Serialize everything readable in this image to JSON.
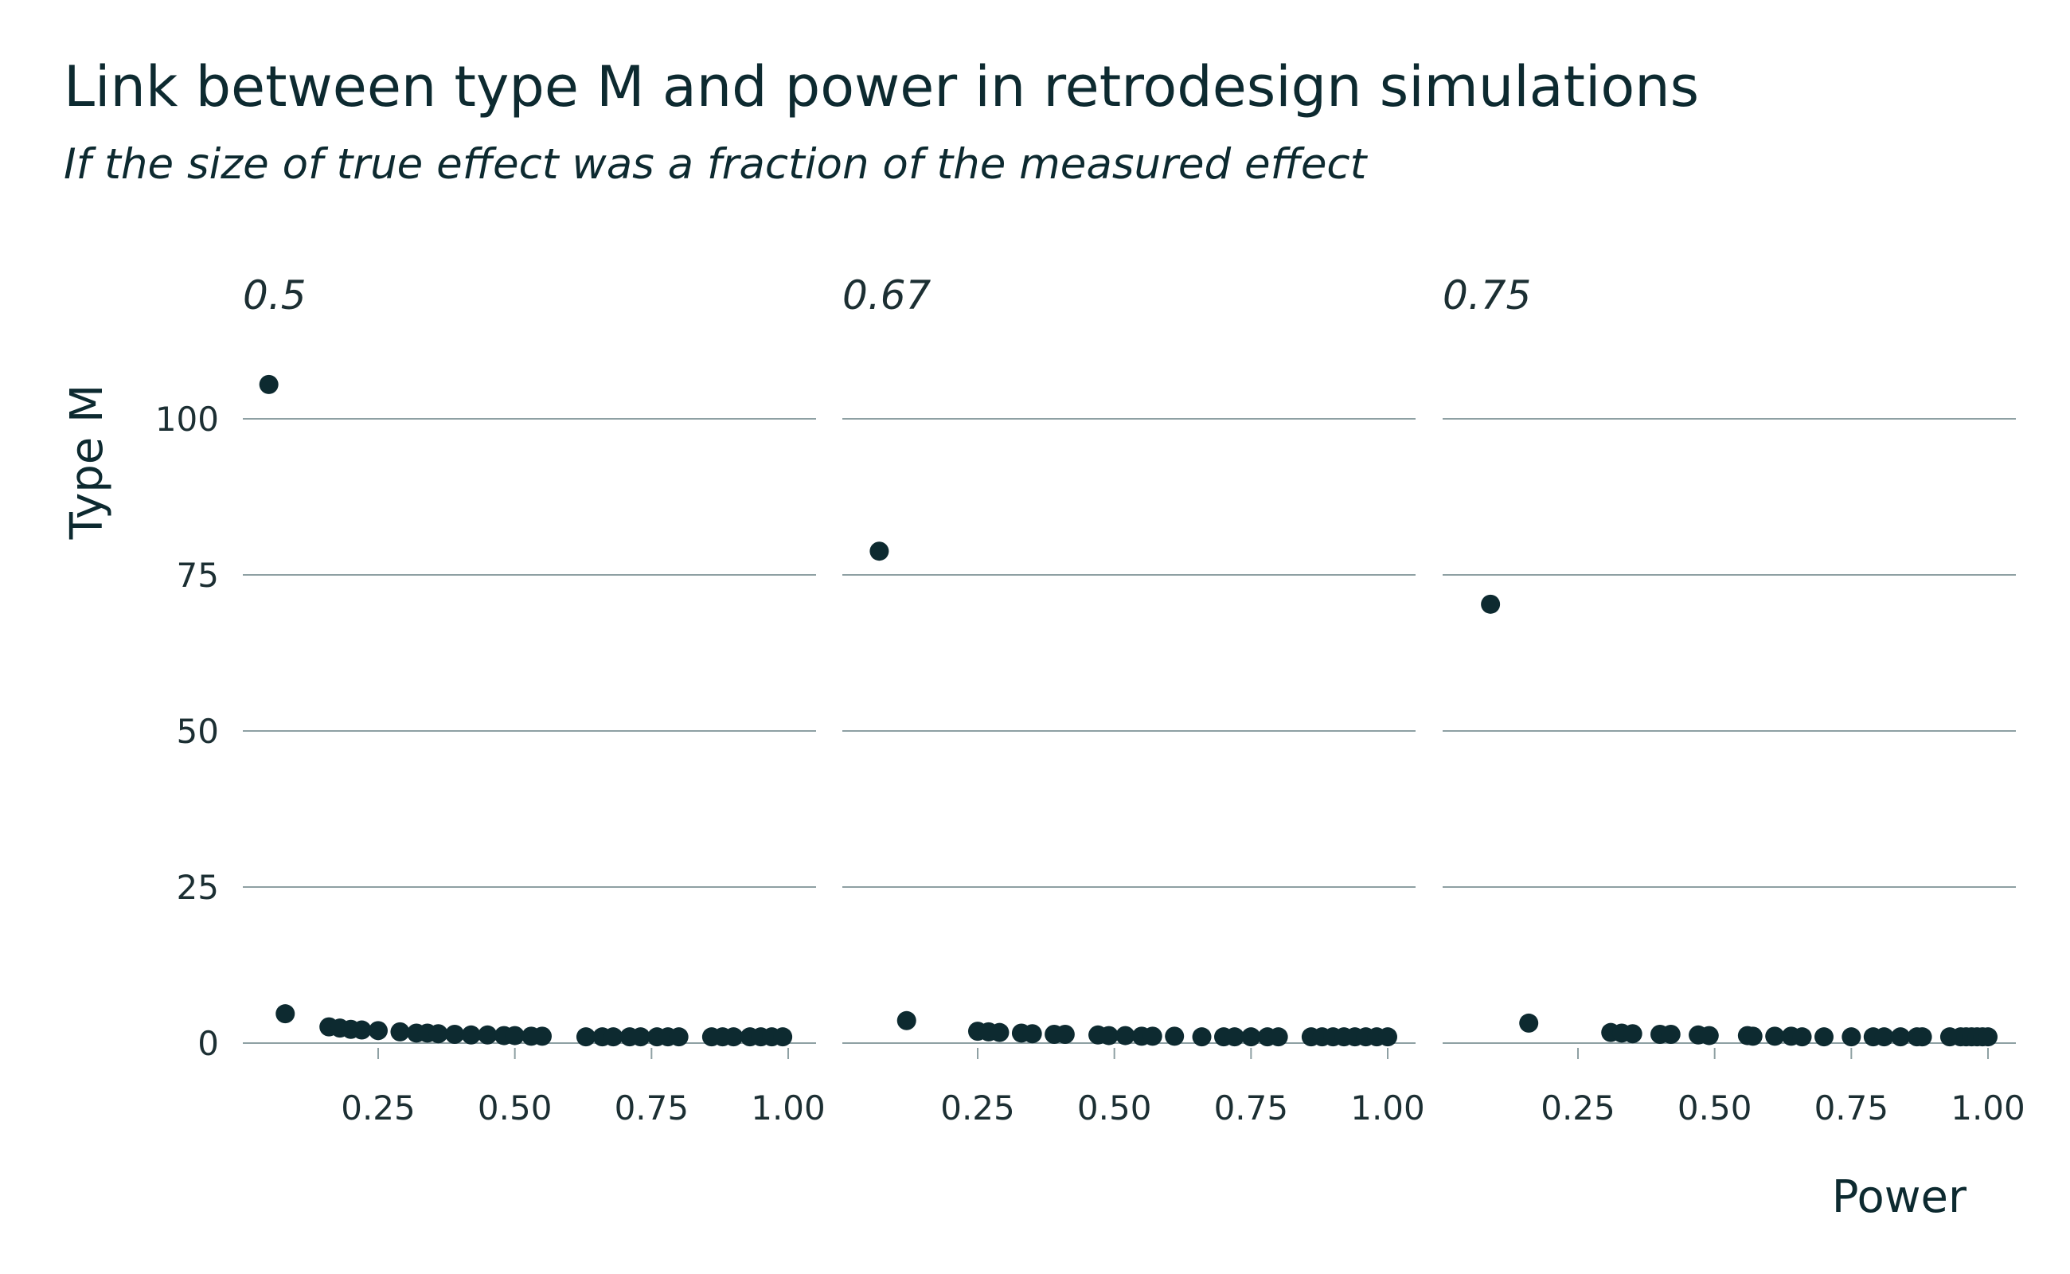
{
  "title": "Link between type M and power in retrodesign simulations",
  "subtitle": "If the size of true effect was a fraction of the measured effect",
  "colors": {
    "background": "#ffffff",
    "text": "#0d2a30",
    "gridline": "#8ea0a3",
    "point": "#0d2a30"
  },
  "chart_data": {
    "type": "scatter",
    "facet_layout": "1 row x 3 columns, shared y axis",
    "xlabel": "Power",
    "ylabel": "Type M",
    "xlim": [
      0.05,
      1.03
    ],
    "ylim": [
      -3,
      110
    ],
    "x_ticks": [
      "0.25",
      "0.50",
      "0.75",
      "1.00"
    ],
    "x_tick_values": [
      0.25,
      0.5,
      0.75,
      1.0
    ],
    "y_ticks": [
      "0",
      "25",
      "50",
      "75",
      "100"
    ],
    "y_tick_values": [
      0,
      25,
      50,
      75,
      100
    ],
    "grid": "horizontal major gridlines only",
    "panels": [
      {
        "label": "0.5",
        "x": [
          0.05,
          0.08,
          0.16,
          0.18,
          0.2,
          0.22,
          0.25,
          0.29,
          0.32,
          0.34,
          0.36,
          0.39,
          0.42,
          0.45,
          0.48,
          0.5,
          0.53,
          0.55,
          0.63,
          0.66,
          0.68,
          0.71,
          0.73,
          0.76,
          0.78,
          0.8,
          0.86,
          0.88,
          0.9,
          0.93,
          0.95,
          0.97,
          0.99
        ],
        "y": [
          105.5,
          4.7,
          2.6,
          2.4,
          2.2,
          2.1,
          2.0,
          1.8,
          1.6,
          1.6,
          1.5,
          1.4,
          1.3,
          1.3,
          1.2,
          1.2,
          1.1,
          1.1,
          1.0,
          1.0,
          1.0,
          1.0,
          1.0,
          1.0,
          1.0,
          1.0,
          1.0,
          1.0,
          1.0,
          1.0,
          1.0,
          1.0,
          1.0
        ]
      },
      {
        "label": "0.67",
        "x": [
          0.07,
          0.12,
          0.25,
          0.27,
          0.29,
          0.33,
          0.35,
          0.39,
          0.41,
          0.47,
          0.49,
          0.52,
          0.55,
          0.57,
          0.61,
          0.66,
          0.7,
          0.72,
          0.75,
          0.78,
          0.8,
          0.86,
          0.88,
          0.9,
          0.92,
          0.94,
          0.96,
          0.98,
          1.0
        ],
        "y": [
          78.8,
          3.6,
          1.9,
          1.8,
          1.7,
          1.6,
          1.5,
          1.4,
          1.4,
          1.3,
          1.2,
          1.2,
          1.1,
          1.1,
          1.1,
          1.0,
          1.0,
          1.0,
          1.0,
          1.0,
          1.0,
          1.0,
          1.0,
          1.0,
          1.0,
          1.0,
          1.0,
          1.0,
          1.0
        ]
      },
      {
        "label": "0.75",
        "x": [
          0.09,
          0.16,
          0.31,
          0.33,
          0.35,
          0.4,
          0.42,
          0.47,
          0.49,
          0.56,
          0.57,
          0.61,
          0.64,
          0.66,
          0.7,
          0.75,
          0.79,
          0.81,
          0.84,
          0.87,
          0.88,
          0.93,
          0.95,
          0.96,
          0.97,
          0.98,
          0.99,
          1.0
        ],
        "y": [
          70.3,
          3.2,
          1.7,
          1.6,
          1.5,
          1.4,
          1.4,
          1.3,
          1.2,
          1.2,
          1.1,
          1.1,
          1.1,
          1.0,
          1.0,
          1.0,
          1.0,
          1.0,
          1.0,
          1.0,
          1.0,
          1.0,
          1.0,
          1.0,
          1.0,
          1.0,
          1.0,
          1.0
        ]
      }
    ]
  }
}
